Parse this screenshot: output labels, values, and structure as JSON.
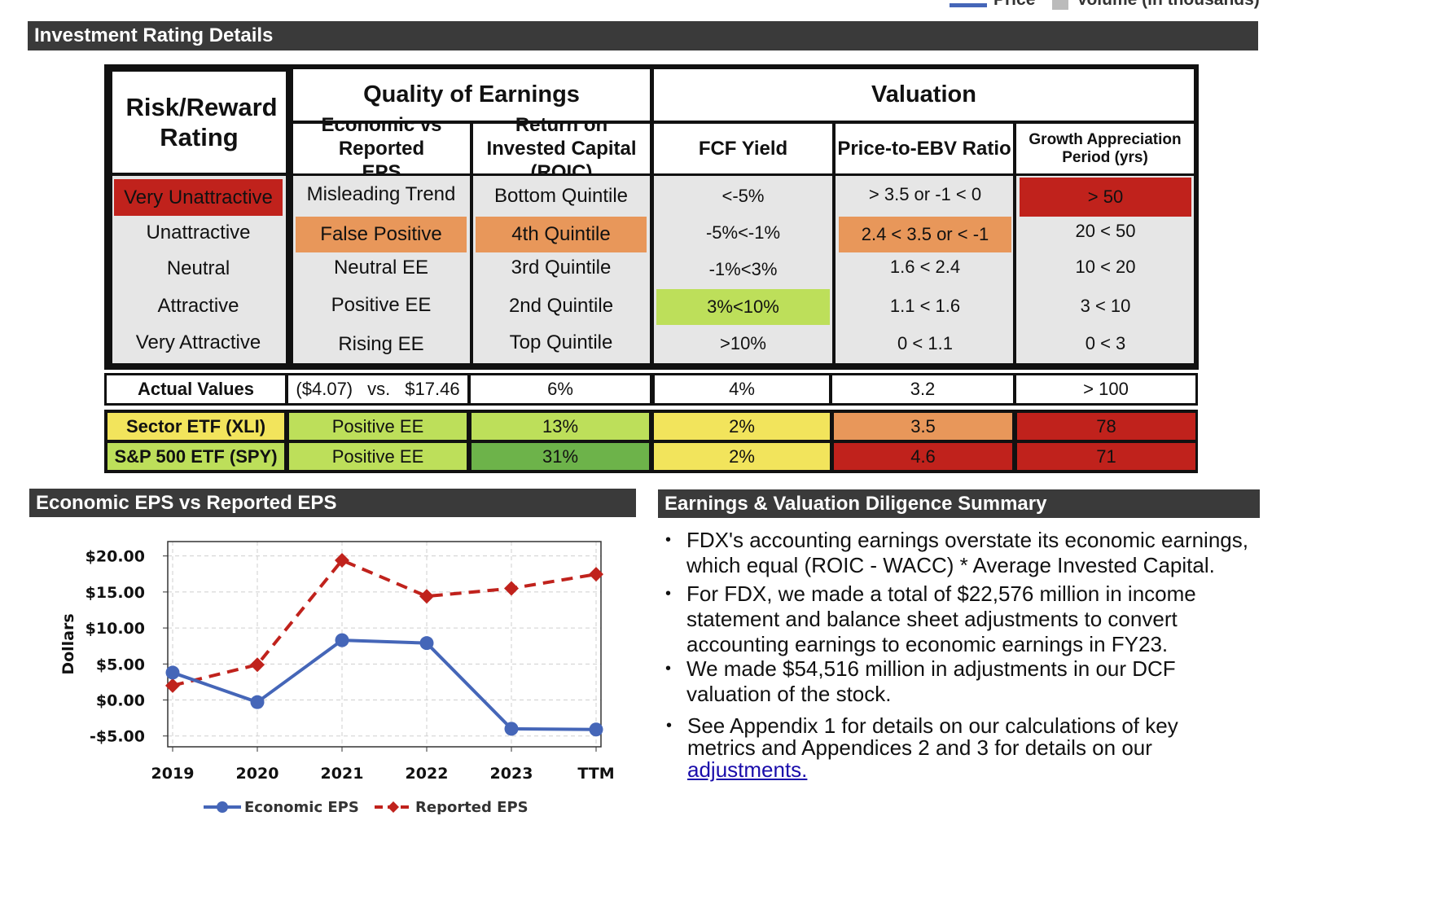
{
  "top_legend": {
    "price_label": "Price",
    "volume_label": "Volume (in thousands)"
  },
  "rating_section": {
    "title": "Investment Rating Details",
    "risk_reward_header": "Risk/Reward Rating",
    "quality_header": "Quality of Earnings",
    "valuation_header": "Valuation",
    "columns": [
      "Economic vs Reported EPS",
      "Return on Invested Capital (ROIC)",
      "FCF Yield",
      "Price-to-EBV Ratio",
      "Growth Appreciation Period (yrs)"
    ],
    "ratings": [
      "Very Unattractive",
      "Unattractive",
      "Neutral",
      "Attractive",
      "Very Attractive"
    ],
    "eps_levels": [
      "Misleading Trend",
      "False Positive",
      "Neutral EE",
      "Positive EE",
      "Rising EE"
    ],
    "roic_levels": [
      "Bottom Quintile",
      "4th Quintile",
      "3rd Quintile",
      "2nd Quintile",
      "Top Quintile"
    ],
    "fcf_levels": [
      "<-5%",
      "-5%<-1%",
      "-1%<3%",
      "3%<10%",
      ">10%"
    ],
    "ebv_levels": [
      "> 3.5 or -1 < 0",
      "2.4 < 3.5 or < -1",
      "1.6 < 2.4",
      "1.1 < 1.6",
      "0 < 1.1"
    ],
    "gap_levels": [
      "> 50",
      "20 < 50",
      "10 < 20",
      "3 < 10",
      "0 < 3"
    ],
    "highlight_colors": {
      "red": "#c0221c",
      "orange": "#e8975a",
      "light_green": "#bddf5a",
      "green": "#6db34a",
      "yellow": "#f2e45c"
    },
    "actual": {
      "label": "Actual Values",
      "eps_economic": "($4.07)",
      "eps_vs": "vs.",
      "eps_reported": "$17.46",
      "roic": "6%",
      "fcf": "4%",
      "ebv": "3.2",
      "gap": "> 100"
    },
    "sector": {
      "label": "Sector ETF (XLI)",
      "eps": "Positive EE",
      "roic": "13%",
      "fcf": "2%",
      "ebv": "3.5",
      "gap": "78"
    },
    "spy": {
      "label": "S&P 500 ETF (SPY)",
      "eps": "Positive EE",
      "roic": "31%",
      "fcf": "2%",
      "ebv": "4.6",
      "gap": "71"
    }
  },
  "eps_section": {
    "title": "Economic EPS vs Reported EPS"
  },
  "summary_section": {
    "title": "Earnings & Valuation Diligence Summary",
    "bullets": [
      "FDX's accounting earnings overstate its economic earnings, which equal (ROIC - WACC) * Average Invested Capital.",
      "For FDX, we made a total of $22,576 million in income statement and balance sheet adjustments to convert accounting earnings to economic earnings in FY23.",
      "We made $54,516 million in adjustments in our DCF valuation of the stock."
    ],
    "last_bullet_text": "See Appendix 1 for details on our calculations of key metrics and Appendices 2 and 3 for details on our",
    "last_bullet_link": "adjustments."
  },
  "chart_data": {
    "type": "line",
    "categories": [
      "2019",
      "2020",
      "2021",
      "2022",
      "2023",
      "TTM"
    ],
    "series": [
      {
        "name": "Economic EPS",
        "values": [
          3.8,
          -0.3,
          8.3,
          7.9,
          -4.0,
          -4.1
        ],
        "color": "#4566b8"
      },
      {
        "name": "Reported EPS",
        "values": [
          2.0,
          4.9,
          19.4,
          14.4,
          15.5,
          17.46
        ],
        "color": "#c0221c"
      }
    ],
    "ylabel": "Dollars",
    "xlabel": "",
    "ylim": [
      -6.5,
      22
    ],
    "yticks": [
      20,
      15,
      10,
      5,
      0,
      -5
    ],
    "ytick_labels": [
      "$20.00",
      "$15.00",
      "$10.00",
      "$5.00",
      "$0.00",
      "-$5.00"
    ],
    "grid": true,
    "legend": "bottom"
  }
}
